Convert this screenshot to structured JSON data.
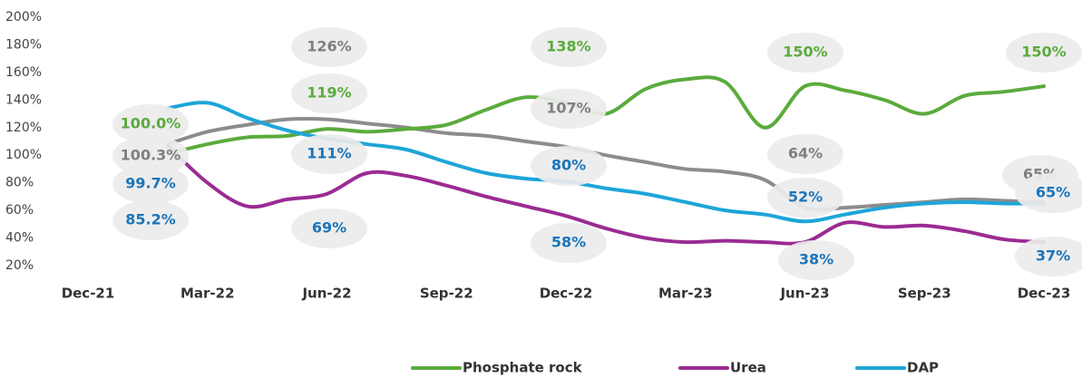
{
  "chart_data": {
    "type": "line",
    "categories": [
      "Dec-21",
      null,
      null,
      "Mar-22",
      null,
      null,
      "Jun-22",
      null,
      null,
      "Sep-22",
      null,
      null,
      "Dec-22",
      null,
      null,
      "Mar-23",
      null,
      null,
      "Jun-23",
      null,
      null,
      "Sep-23",
      null,
      null,
      "Dec-23"
    ],
    "ylim": [
      20,
      200
    ],
    "yticks": [
      {
        "value": 20,
        "label": "20%"
      },
      {
        "value": 40,
        "label": "40%"
      },
      {
        "value": 60,
        "label": "60%"
      },
      {
        "value": 80,
        "label": "80%"
      },
      {
        "value": 100,
        "label": "100%"
      },
      {
        "value": 120,
        "label": "120%"
      },
      {
        "value": 140,
        "label": "140%"
      },
      {
        "value": 160,
        "label": "160%"
      },
      {
        "value": 180,
        "label": "180%"
      },
      {
        "value": 200,
        "label": "200%"
      }
    ],
    "grid": false,
    "legend": "bottom",
    "series": [
      {
        "name": "Phosphate rock",
        "color": "#5aab3c",
        "values": [
          null,
          null,
          101,
          108,
          113,
          114,
          119,
          117,
          119,
          122,
          133,
          142,
          138,
          130,
          148,
          155,
          153,
          120,
          150,
          147,
          140,
          130,
          143,
          146,
          150
        ]
      },
      {
        "name": "Urea",
        "color": "#9b2b93",
        "values": [
          null,
          null,
          107,
          80,
          63,
          68,
          72,
          87,
          85,
          78,
          70,
          63,
          56,
          47,
          40,
          37,
          38,
          37,
          37,
          51,
          48,
          49,
          45,
          39,
          37
        ]
      },
      {
        "name": "DAP",
        "color": "#1ea5d8",
        "values": [
          null,
          null,
          134,
          138,
          127,
          118,
          112,
          108,
          104,
          95,
          87,
          83,
          81,
          76,
          72,
          66,
          60,
          57,
          52,
          57,
          62,
          65,
          66,
          65,
          65
        ]
      },
      {
        "color": "#8c8c8c",
        "values": [
          null,
          null,
          108,
          117,
          122,
          126,
          126,
          123,
          120,
          116,
          114,
          110,
          106,
          100,
          95,
          90,
          88,
          82,
          62,
          62,
          64,
          66,
          68,
          67,
          66
        ]
      }
    ],
    "annotations": [
      {
        "text": "100.0%",
        "color": "#5aab3c"
      },
      {
        "text": "100.3%",
        "color": "#7f7f7f"
      },
      {
        "text": "99.7%",
        "color": "#1b75bb"
      },
      {
        "text": "85.2%",
        "color": "#1b75bb"
      },
      {
        "text": "126%",
        "color": "#7f7f7f"
      },
      {
        "text": "119%",
        "color": "#5aab3c"
      },
      {
        "text": "111%",
        "color": "#1b75bb"
      },
      {
        "text": "69%",
        "color": "#1b75bb"
      },
      {
        "text": "138%",
        "color": "#5aab3c"
      },
      {
        "text": "107%",
        "color": "#7f7f7f"
      },
      {
        "text": "80%",
        "color": "#1b75bb"
      },
      {
        "text": "58%",
        "color": "#1b75bb"
      },
      {
        "text": "150%",
        "color": "#5aab3c"
      },
      {
        "text": "64%",
        "color": "#7f7f7f"
      },
      {
        "text": "52%",
        "color": "#1b75bb"
      },
      {
        "text": "38%",
        "color": "#1b75bb"
      },
      {
        "text": "150%",
        "color": "#5aab3c"
      },
      {
        "text": "65%",
        "color": "#7f7f7f"
      },
      {
        "text": "65%",
        "color": "#1b75bb"
      },
      {
        "text": "37%",
        "color": "#1b75bb"
      }
    ]
  }
}
